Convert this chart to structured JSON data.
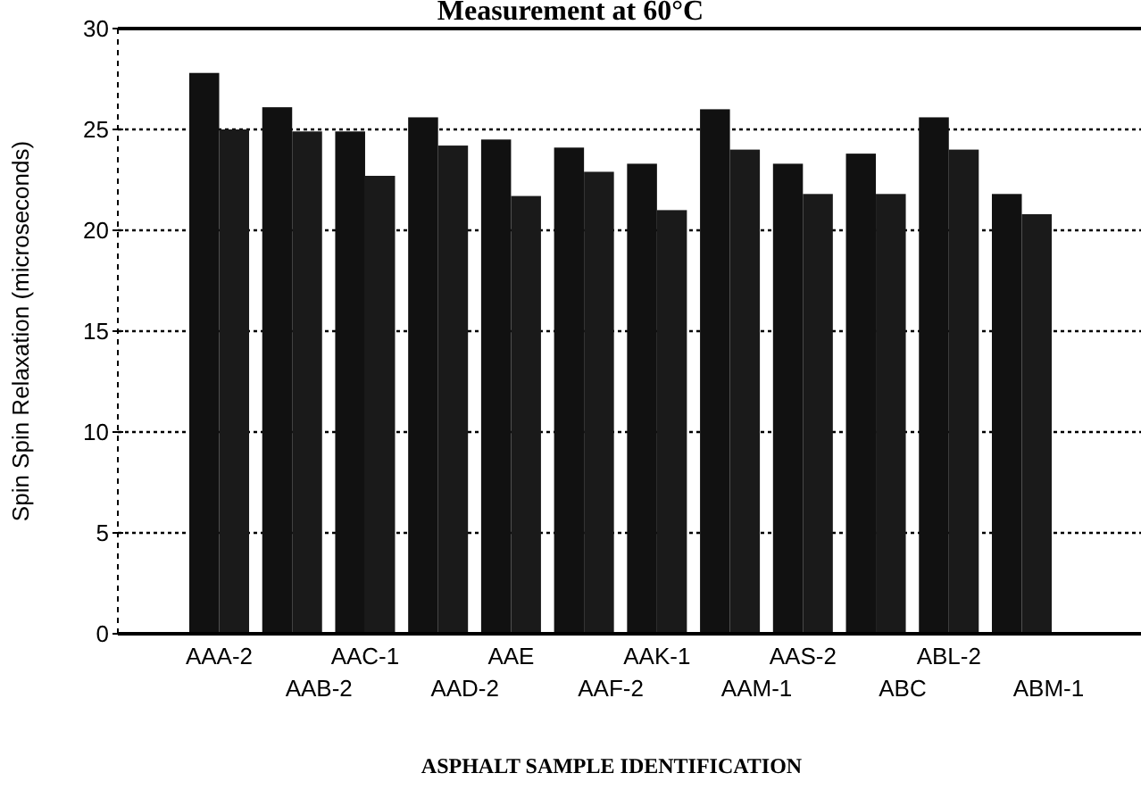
{
  "chart_data": {
    "type": "bar",
    "title": "Measurement at 60°C",
    "xlabel": "ASPHALT SAMPLE IDENTIFICATION",
    "ylabel": "Spin Spin Relaxation (microseconds)",
    "categories": [
      "AAA-2",
      "AAB-2",
      "AAC-1",
      "AAD-2",
      "AAE",
      "AAF-2",
      "AAK-1",
      "AAM-1",
      "AAS-2",
      "ABC",
      "ABL-2",
      "ABM-1"
    ],
    "series": [
      {
        "color": "#111111",
        "values": [
          27.8,
          26.1,
          24.9,
          25.6,
          24.5,
          24.1,
          23.3,
          26.0,
          23.3,
          23.8,
          25.6,
          21.8
        ]
      },
      {
        "color": "#1a1a1a",
        "values": [
          25.0,
          24.9,
          22.7,
          24.2,
          21.7,
          22.9,
          21.0,
          24.0,
          21.8,
          21.8,
          24.0,
          20.8
        ]
      }
    ],
    "ylim": [
      0,
      30
    ],
    "yticks": [
      0,
      5,
      10,
      15,
      20,
      25,
      30
    ],
    "grid": "y"
  }
}
